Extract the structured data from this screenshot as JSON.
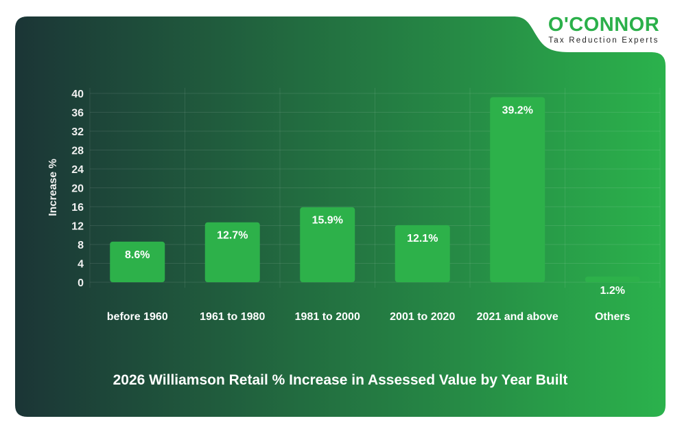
{
  "brand": {
    "name": "O'CONNOR",
    "tagline": "Tax Reduction Experts",
    "color": "#2bb04a"
  },
  "colors": {
    "bar": "#2db14a",
    "gradient_start": "#1b3536",
    "gradient_end": "#2bb24c"
  },
  "chart_data": {
    "type": "bar",
    "title": "2026 Williamson Retail % Increase in Assessed Value by Year Built",
    "xlabel": "",
    "ylabel": "Increase %",
    "categories": [
      "before 1960",
      "1961 to 1980",
      "1981 to 2000",
      "2001 to 2020",
      "2021 and above",
      "Others"
    ],
    "values": [
      8.6,
      12.7,
      15.9,
      12.1,
      39.2,
      1.2
    ],
    "data_labels": [
      "8.6%",
      "12.7%",
      "15.9%",
      "12.1%",
      "39.2%",
      "1.2%"
    ],
    "ylim": [
      0,
      40
    ],
    "yticks": [
      0,
      4,
      8,
      12,
      16,
      20,
      24,
      28,
      32,
      36,
      40
    ],
    "grid": true
  }
}
